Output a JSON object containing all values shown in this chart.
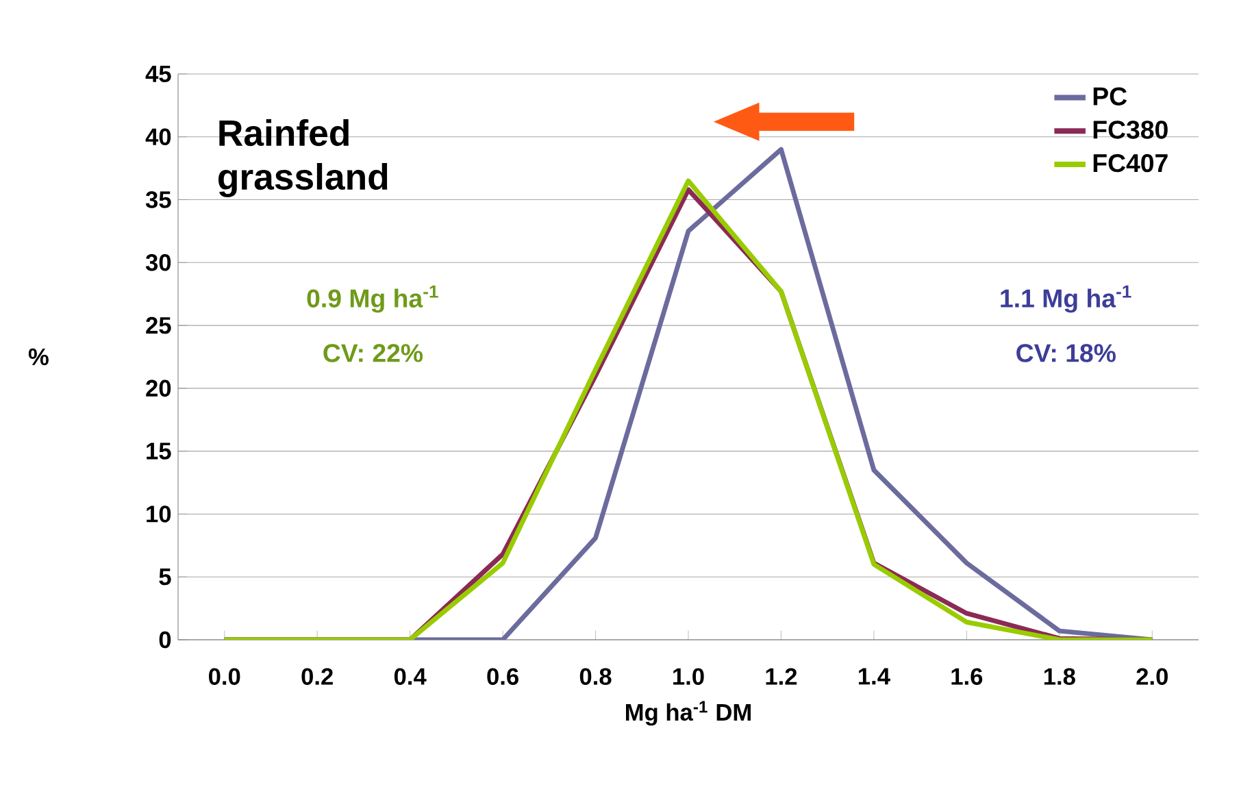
{
  "chart_data": {
    "type": "line",
    "xlabel": "Mg ha$^{-1}$ DM",
    "ylabel": "%",
    "categories": [
      "0.0",
      "0.2",
      "0.4",
      "0.6",
      "0.8",
      "1.0",
      "1.2",
      "1.4",
      "1.6",
      "1.8",
      "2.0"
    ],
    "series": [
      {
        "name": "PC",
        "color": "#6b6b9e",
        "values": [
          0,
          0,
          0,
          0,
          8.1,
          32.5,
          39,
          13.5,
          6.1,
          0.7,
          0
        ]
      },
      {
        "name": "FC380",
        "color": "#8b2a55",
        "values": [
          0,
          0,
          0,
          6.8,
          21,
          35.8,
          27.7,
          6.1,
          2.1,
          0.1,
          0
        ]
      },
      {
        "name": "FC407",
        "color": "#99cc00",
        "values": [
          0,
          0,
          0,
          6.1,
          21.5,
          36.5,
          27.7,
          6,
          1.4,
          0,
          0
        ]
      }
    ],
    "ylim": [
      0,
      45
    ],
    "yticks": [
      0,
      5,
      10,
      15,
      20,
      25,
      30,
      35,
      40,
      45
    ],
    "grid": "y",
    "legend": "top right",
    "marker": "none",
    "line_style": "solid",
    "annotations": [
      "Rainfed grassland",
      "0.9 Mg ha$^{-1}$",
      "CV: 22%",
      "1.1 Mg ha$^{-1}$",
      "CV: 18%"
    ]
  }
}
